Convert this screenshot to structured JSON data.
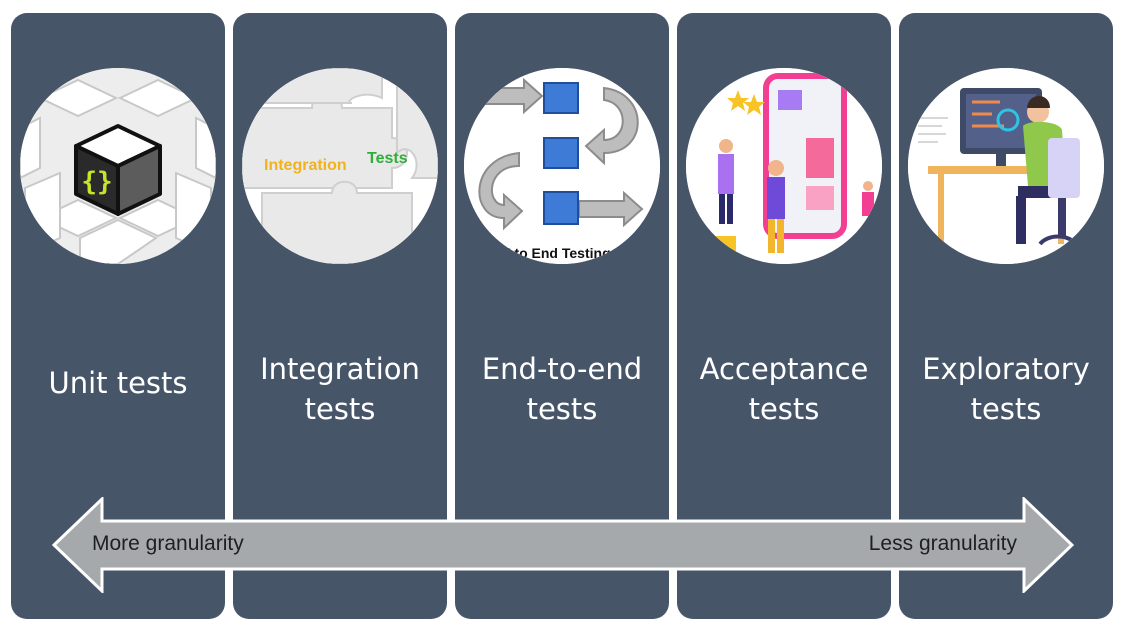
{
  "columns": [
    {
      "label_lines": [
        "Unit tests"
      ],
      "image": "cube-braces-icon"
    },
    {
      "label_lines": [
        "Integration",
        "tests"
      ],
      "image": "puzzle-pieces-illustration",
      "image_text": [
        "Integration",
        "Tests"
      ]
    },
    {
      "label_lines": [
        "End-to-end",
        "tests"
      ],
      "image": "flow-arrows-illustration",
      "image_text": "d to End Testing"
    },
    {
      "label_lines": [
        "Acceptance",
        "tests"
      ],
      "image": "phone-rating-illustration"
    },
    {
      "label_lines": [
        "Exploratory",
        "tests"
      ],
      "image": "developer-at-desk-illustration"
    }
  ],
  "arrow": {
    "left_label": "More granularity",
    "right_label": "Less granularity"
  },
  "colors": {
    "column_bg": "#475569",
    "arrow_fill": "#a6a9ab",
    "arrow_stroke": "#ffffff",
    "label_text": "#ffffff",
    "integration_word": "#f2b21c",
    "tests_word": "#2fae3a"
  }
}
